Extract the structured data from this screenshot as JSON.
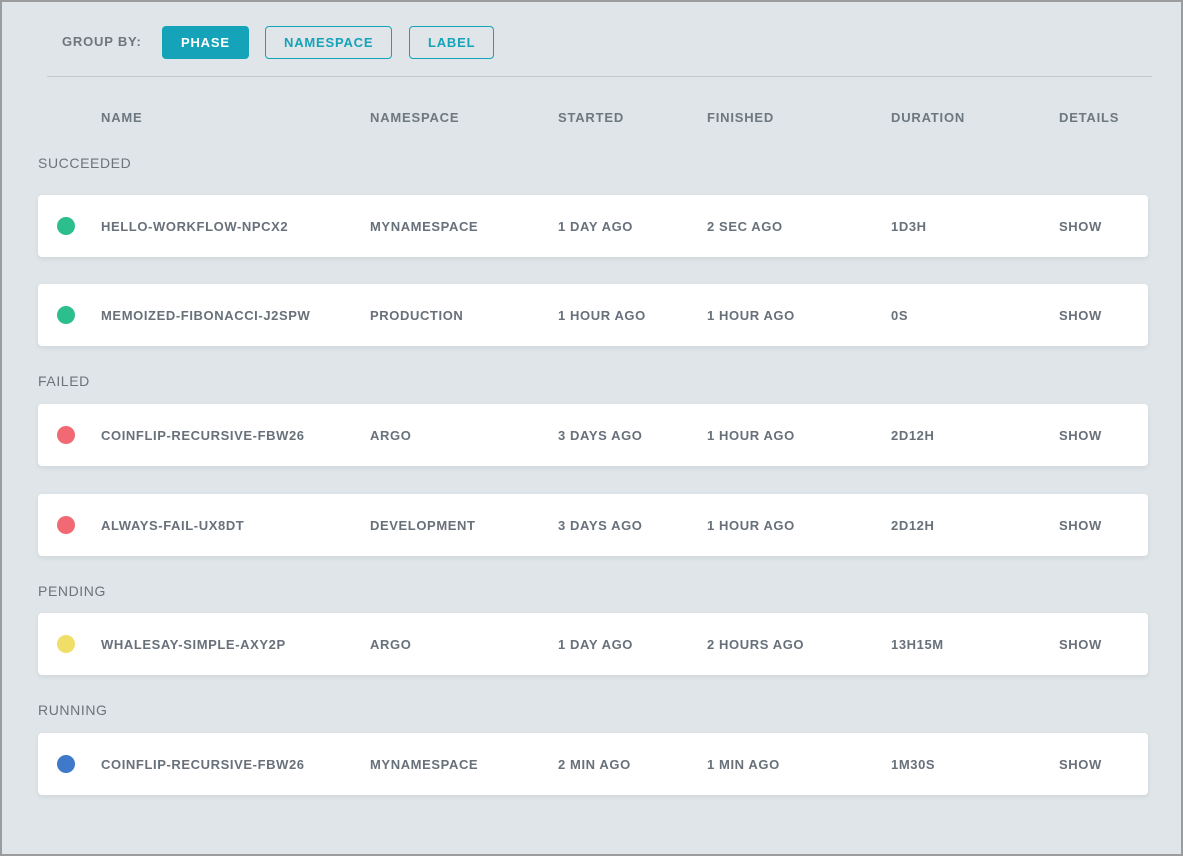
{
  "toolbar": {
    "group_by_label": "GROUP BY:",
    "buttons": [
      {
        "label": "PHASE",
        "active": true
      },
      {
        "label": "NAMESPACE",
        "active": false
      },
      {
        "label": "LABEL",
        "active": false
      }
    ]
  },
  "colors": {
    "accent_teal": "#14a3b8",
    "succeeded_green": "#2dbe8d",
    "failed_red": "#f06973",
    "pending_yellow": "#efdf67",
    "running_blue": "#3e7ac9",
    "background": "#dfe5e8"
  },
  "table": {
    "columns": [
      "NAME",
      "NAMESPACE",
      "STARTED",
      "FINISHED",
      "DURATION",
      "DETAILS"
    ],
    "groups": [
      {
        "label": "SUCCEEDED",
        "status_color": "#2dbe8d",
        "rows": [
          {
            "name": "HELLO-WORKFLOW-NPCX2",
            "namespace": "MYNAMESPACE",
            "started": "1 DAY AGO",
            "finished": "2 SEC AGO",
            "duration": "1D3H",
            "details": "SHOW"
          },
          {
            "name": "MEMOIZED-FIBONACCI-J2SPW",
            "namespace": "PRODUCTION",
            "started": "1 HOUR AGO",
            "finished": "1 HOUR AGO",
            "duration": "0S",
            "details": "SHOW"
          }
        ]
      },
      {
        "label": "FAILED",
        "status_color": "#f06973",
        "rows": [
          {
            "name": "COINFLIP-RECURSIVE-FBW26",
            "namespace": "ARGO",
            "started": "3 DAYS AGO",
            "finished": "1 HOUR AGO",
            "duration": "2D12H",
            "details": "SHOW"
          },
          {
            "name": "ALWAYS-FAIL-UX8DT",
            "namespace": "DEVELOPMENT",
            "started": "3 DAYS AGO",
            "finished": "1 HOUR AGO",
            "duration": "2D12H",
            "details": "SHOW"
          }
        ]
      },
      {
        "label": "PENDING",
        "status_color": "#efdf67",
        "rows": [
          {
            "name": "WHALESAY-SIMPLE-AXY2P",
            "namespace": "ARGO",
            "started": "1 DAY AGO",
            "finished": "2 HOURS AGO",
            "duration": "13H15M",
            "details": "SHOW"
          }
        ]
      },
      {
        "label": "RUNNING",
        "status_color": "#3e7ac9",
        "rows": [
          {
            "name": "COINFLIP-RECURSIVE-FBW26",
            "namespace": "MYNAMESPACE",
            "started": "2 MIN AGO",
            "finished": "1 MIN AGO",
            "duration": "1M30S",
            "details": "SHOW"
          }
        ]
      }
    ]
  }
}
